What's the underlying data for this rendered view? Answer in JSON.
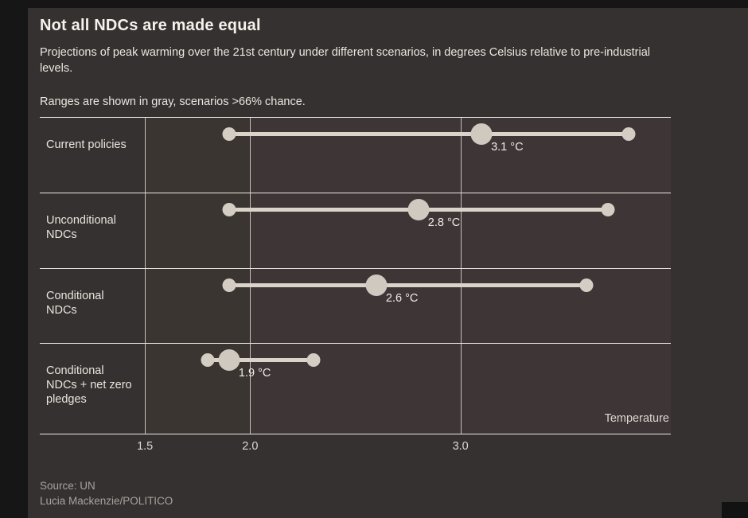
{
  "header": {
    "title": "Not all NDCs are made equal",
    "subtitle": "Projections of peak warming over the 21st century under different scenarios, in degrees Celsius relative to pre-industrial levels.",
    "note": "Ranges are shown in gray, scenarios >66% chance."
  },
  "chart_data": {
    "type": "scatter",
    "variant": "dot-range",
    "title": "Not all NDCs are made equal",
    "x_axis": {
      "label": "Temperature",
      "unit": "°C",
      "range": [
        1.0,
        4.0
      ],
      "ticks": [
        {
          "value": 1.5,
          "label": "1.5"
        },
        {
          "value": 2.0,
          "label": "2.0"
        },
        {
          "value": 3.0,
          "label": "3.0"
        }
      ]
    },
    "categories": [
      "Current policies",
      "Unconditional NDCs",
      "Conditional NDCs",
      "Conditional NDCs + net zero pledges"
    ],
    "series": [
      {
        "name": "Current policies",
        "range_low": 1.9,
        "range_high": 3.8,
        "peak": 3.1,
        "peak_label": "3.1 °C"
      },
      {
        "name": "Unconditional NDCs",
        "range_low": 1.9,
        "range_high": 3.7,
        "peak": 2.8,
        "peak_label": "2.8 °C"
      },
      {
        "name": "Conditional NDCs",
        "range_low": 1.9,
        "range_high": 3.6,
        "peak": 2.6,
        "peak_label": "2.6 °C"
      },
      {
        "name": "Conditional NDCs + net zero pledges",
        "range_low": 1.8,
        "range_high": 2.3,
        "peak": 1.9,
        "peak_label": "1.9 °C"
      }
    ],
    "grid": true,
    "legend_position": "none"
  },
  "footer": {
    "source": "Source: UN",
    "credit": "Lucia Mackenzie/POLITICO"
  },
  "colors": {
    "page_background": "#161616",
    "card_background": "#343130",
    "band_1_5_to_2": "#3a3531",
    "band_above_2": "#3e3537",
    "grid_line": "#f3efe8",
    "range_bar": "#d9d3ca",
    "dot": "#d3cdc4",
    "title_text": "#f5f2ec",
    "body_text": "#eae6df",
    "muted_text": "#a7a39d"
  }
}
